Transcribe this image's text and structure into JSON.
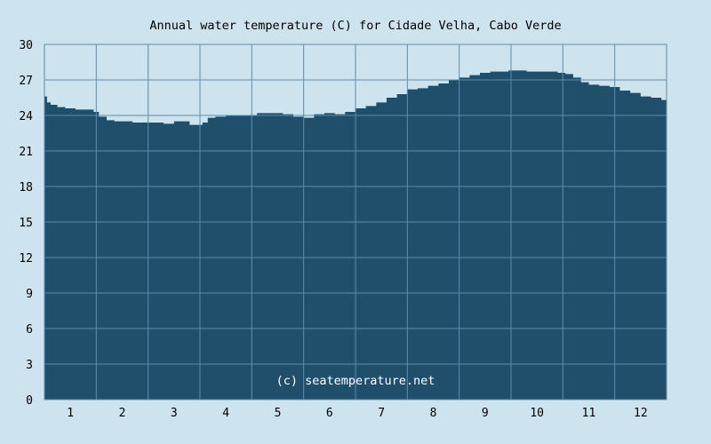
{
  "chart_data": {
    "type": "area",
    "title": "Annual water temperature (C) for Cidade Velha, Cabo Verde",
    "credit": "(c) seatemperature.net",
    "xlabel": "",
    "ylabel": "",
    "ylim": [
      0,
      30
    ],
    "y_ticks": [
      "0",
      "3",
      "6",
      "9",
      "12",
      "15",
      "18",
      "21",
      "24",
      "27",
      "30"
    ],
    "x_ticks": [
      "1",
      "2",
      "3",
      "4",
      "5",
      "6",
      "7",
      "8",
      "9",
      "10",
      "11",
      "12"
    ],
    "grid": true,
    "fill_color": "#1f4f6b",
    "background_color": "#cde3ee",
    "x_unit": "month (fractional, 0.5 = start of Jan, 12.5 = end of Dec)",
    "x": [
      0.5,
      0.55,
      0.62,
      0.75,
      0.9,
      1.1,
      1.3,
      1.45,
      1.55,
      1.7,
      1.85,
      2.0,
      2.2,
      2.4,
      2.6,
      2.8,
      3.0,
      3.15,
      3.3,
      3.45,
      3.55,
      3.65,
      3.8,
      4.0,
      4.3,
      4.6,
      4.9,
      5.1,
      5.3,
      5.5,
      5.7,
      5.9,
      6.1,
      6.3,
      6.5,
      6.7,
      6.9,
      7.1,
      7.3,
      7.5,
      7.7,
      7.9,
      8.1,
      8.3,
      8.5,
      8.7,
      8.9,
      9.1,
      9.3,
      9.45,
      9.6,
      9.8,
      10.0,
      10.2,
      10.4,
      10.55,
      10.7,
      10.85,
      11.0,
      11.2,
      11.4,
      11.6,
      11.8,
      12.0,
      12.2,
      12.4,
      12.5
    ],
    "values": [
      25.6,
      25.1,
      24.9,
      24.7,
      24.6,
      24.5,
      24.5,
      24.3,
      23.9,
      23.6,
      23.5,
      23.5,
      23.4,
      23.4,
      23.4,
      23.3,
      23.5,
      23.5,
      23.2,
      23.2,
      23.4,
      23.8,
      23.9,
      24.0,
      24.0,
      24.2,
      24.2,
      24.1,
      23.9,
      23.8,
      24.1,
      24.2,
      24.1,
      24.3,
      24.6,
      24.8,
      25.1,
      25.5,
      25.8,
      26.2,
      26.3,
      26.5,
      26.7,
      27.0,
      27.2,
      27.4,
      27.6,
      27.7,
      27.7,
      27.8,
      27.8,
      27.7,
      27.7,
      27.7,
      27.6,
      27.5,
      27.2,
      26.8,
      26.6,
      26.5,
      26.4,
      26.1,
      25.9,
      25.6,
      25.5,
      25.3,
      25.2
    ]
  }
}
